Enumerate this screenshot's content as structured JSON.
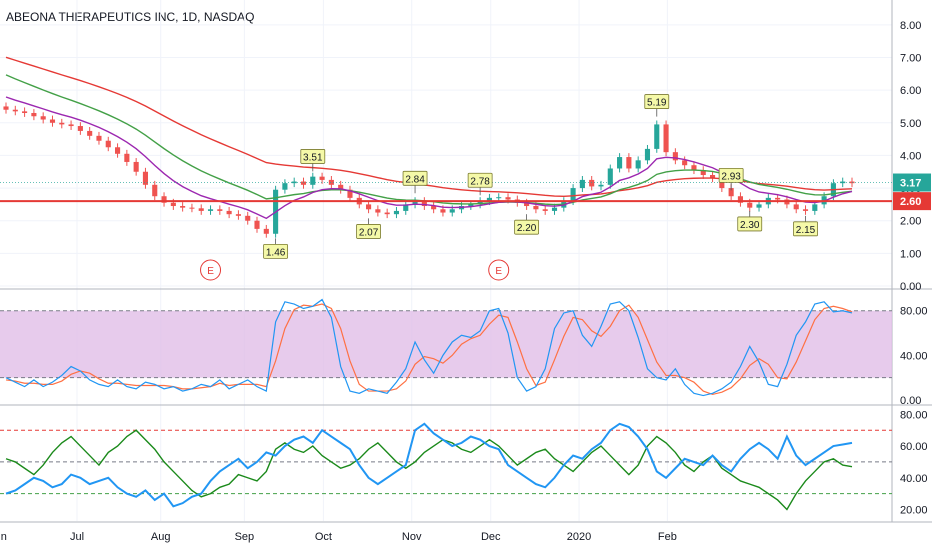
{
  "symbol_title": "ABEONA THERAPEUTICS INC, 1D, NASDAQ",
  "colors": {
    "up": "#26a69a",
    "down": "#ef5350",
    "ema_fast": "#9c27b0",
    "ema_mid": "#43a047",
    "ema_slow": "#e53935",
    "hline": "#e53935",
    "last_price_bg": "#26a69a",
    "hline_label_bg": "#e53935",
    "stoch_k": "#2196f3",
    "stoch_d": "#ff7043",
    "stoch_band": "#e1bee7",
    "osc_blue": "#2196f3",
    "osc_green": "#1b8a1b"
  },
  "chart_data": [
    {
      "type": "candlestick",
      "title": "ABEONA THERAPEUTICS INC, 1D, NASDAQ",
      "ylim": [
        0,
        8.7
      ],
      "y_ticks": [
        "8.00",
        "7.00",
        "6.00",
        "5.00",
        "4.00",
        "3.00",
        "2.00",
        "1.00",
        "0.00"
      ],
      "x_ticks": [
        "Jun",
        "Jul",
        "Aug",
        "Sep",
        "Oct",
        "Nov",
        "Dec",
        "2020",
        "Feb"
      ],
      "close_price": [
        5.4,
        5.35,
        5.3,
        5.2,
        5.1,
        5.0,
        4.95,
        4.9,
        4.75,
        4.6,
        4.45,
        4.25,
        4.05,
        3.8,
        3.5,
        3.1,
        2.75,
        2.55,
        2.45,
        2.4,
        2.38,
        2.3,
        2.35,
        2.3,
        2.2,
        2.15,
        2.0,
        1.75,
        1.6,
        2.95,
        3.15,
        3.2,
        3.1,
        3.35,
        3.25,
        3.1,
        2.95,
        2.7,
        2.5,
        2.35,
        2.25,
        2.2,
        2.3,
        2.5,
        2.6,
        2.45,
        2.35,
        2.25,
        2.35,
        2.45,
        2.5,
        2.6,
        2.7,
        2.72,
        2.65,
        2.55,
        2.45,
        2.35,
        2.3,
        2.4,
        2.6,
        3.0,
        3.25,
        3.05,
        3.1,
        3.6,
        3.95,
        3.6,
        3.85,
        4.2,
        4.95,
        4.1,
        3.85,
        3.7,
        3.55,
        3.4,
        3.3,
        3.0,
        2.75,
        2.55,
        2.4,
        2.5,
        2.7,
        2.65,
        2.5,
        2.35,
        2.3,
        2.5,
        2.75,
        3.15,
        3.2,
        3.15
      ],
      "close_price_label": "3.17",
      "horizontal_line": 2.6,
      "horizontal_line_label": "2.60",
      "moving_averages": {
        "fast_start": 5.9,
        "mid_start": 6.6,
        "slow_start": 7.1
      },
      "callouts": [
        {
          "t": 29,
          "value": 1.46,
          "text": "1.46"
        },
        {
          "t": 33,
          "value": 3.51,
          "text": "3.51"
        },
        {
          "t": 39,
          "value": 2.07,
          "text": "2.07"
        },
        {
          "t": 44,
          "value": 2.84,
          "text": "2.84"
        },
        {
          "t": 51,
          "value": 2.78,
          "text": "2.78"
        },
        {
          "t": 56,
          "value": 2.2,
          "text": "2.20"
        },
        {
          "t": 70,
          "value": 5.19,
          "text": "5.19"
        },
        {
          "t": 78,
          "value": 2.93,
          "text": "2.93"
        },
        {
          "t": 80,
          "value": 2.3,
          "text": "2.30"
        },
        {
          "t": 86,
          "value": 2.15,
          "text": "2.15"
        }
      ],
      "events": [
        {
          "t": 22,
          "text": "E"
        },
        {
          "t": 53,
          "text": "E"
        }
      ]
    },
    {
      "type": "line",
      "name": "stochastic",
      "ylim": [
        0,
        95
      ],
      "y_ticks": [
        "80.00",
        "40.00",
        "0.00"
      ],
      "band": [
        20,
        80
      ],
      "k_line": [
        20,
        16,
        12,
        18,
        12,
        16,
        22,
        30,
        26,
        18,
        14,
        12,
        18,
        12,
        10,
        16,
        14,
        10,
        12,
        8,
        10,
        14,
        12,
        18,
        10,
        14,
        18,
        12,
        8,
        70,
        88,
        86,
        82,
        84,
        90,
        74,
        30,
        8,
        6,
        10,
        8,
        6,
        16,
        28,
        52,
        36,
        24,
        40,
        52,
        58,
        56,
        62,
        80,
        82,
        60,
        20,
        8,
        12,
        28,
        64,
        78,
        80,
        58,
        48,
        66,
        86,
        88,
        80,
        56,
        28,
        20,
        18,
        28,
        14,
        6,
        4,
        6,
        10,
        16,
        30,
        48,
        34,
        14,
        12,
        32,
        58,
        70,
        86,
        88,
        79,
        80,
        78
      ],
      "d_line": [
        18,
        17,
        15,
        15,
        14,
        14,
        17,
        23,
        26,
        24,
        19,
        15,
        15,
        14,
        13,
        13,
        13,
        13,
        12,
        10,
        10,
        11,
        12,
        15,
        13,
        14,
        14,
        14,
        12,
        35,
        64,
        81,
        85,
        84,
        86,
        82,
        64,
        35,
        14,
        8,
        8,
        8,
        10,
        17,
        32,
        39,
        37,
        33,
        40,
        50,
        55,
        58,
        68,
        76,
        74,
        52,
        28,
        13,
        16,
        36,
        57,
        74,
        72,
        62,
        57,
        66,
        80,
        85,
        74,
        54,
        34,
        22,
        22,
        20,
        16,
        8,
        5,
        7,
        11,
        19,
        31,
        37,
        32,
        20,
        19,
        34,
        53,
        72,
        82,
        84,
        82,
        79
      ]
    },
    {
      "type": "line",
      "name": "oscillator",
      "ylim": [
        14,
        84
      ],
      "y_ticks": [
        "80.00",
        "60.00",
        "40.00",
        "20.00"
      ],
      "reference_lines": [
        70,
        50,
        30
      ],
      "blue_line": [
        30,
        32,
        36,
        40,
        38,
        34,
        36,
        42,
        40,
        36,
        38,
        40,
        34,
        30,
        28,
        32,
        26,
        30,
        22,
        24,
        28,
        30,
        38,
        44,
        48,
        52,
        46,
        50,
        56,
        54,
        60,
        64,
        66,
        62,
        70,
        66,
        62,
        58,
        48,
        40,
        36,
        40,
        44,
        48,
        70,
        74,
        68,
        64,
        60,
        62,
        66,
        64,
        60,
        58,
        48,
        44,
        40,
        36,
        34,
        40,
        48,
        54,
        52,
        58,
        62,
        70,
        74,
        72,
        66,
        58,
        44,
        40,
        46,
        52,
        50,
        48,
        54,
        48,
        44,
        52,
        58,
        62,
        58,
        52,
        66,
        54,
        48,
        52,
        56,
        60,
        61,
        62
      ],
      "green_line": [
        52,
        50,
        46,
        42,
        48,
        56,
        62,
        66,
        60,
        54,
        48,
        56,
        60,
        66,
        70,
        64,
        58,
        50,
        44,
        38,
        32,
        28,
        30,
        34,
        36,
        42,
        40,
        38,
        44,
        58,
        62,
        58,
        56,
        60,
        54,
        50,
        46,
        48,
        52,
        58,
        62,
        56,
        50,
        46,
        50,
        56,
        60,
        64,
        62,
        58,
        56,
        60,
        64,
        60,
        54,
        48,
        52,
        56,
        58,
        52,
        48,
        44,
        50,
        56,
        60,
        54,
        48,
        42,
        48,
        60,
        66,
        62,
        56,
        48,
        44,
        50,
        54,
        46,
        42,
        38,
        36,
        34,
        30,
        26,
        20,
        30,
        38,
        44,
        50,
        52,
        48,
        47
      ]
    }
  ]
}
